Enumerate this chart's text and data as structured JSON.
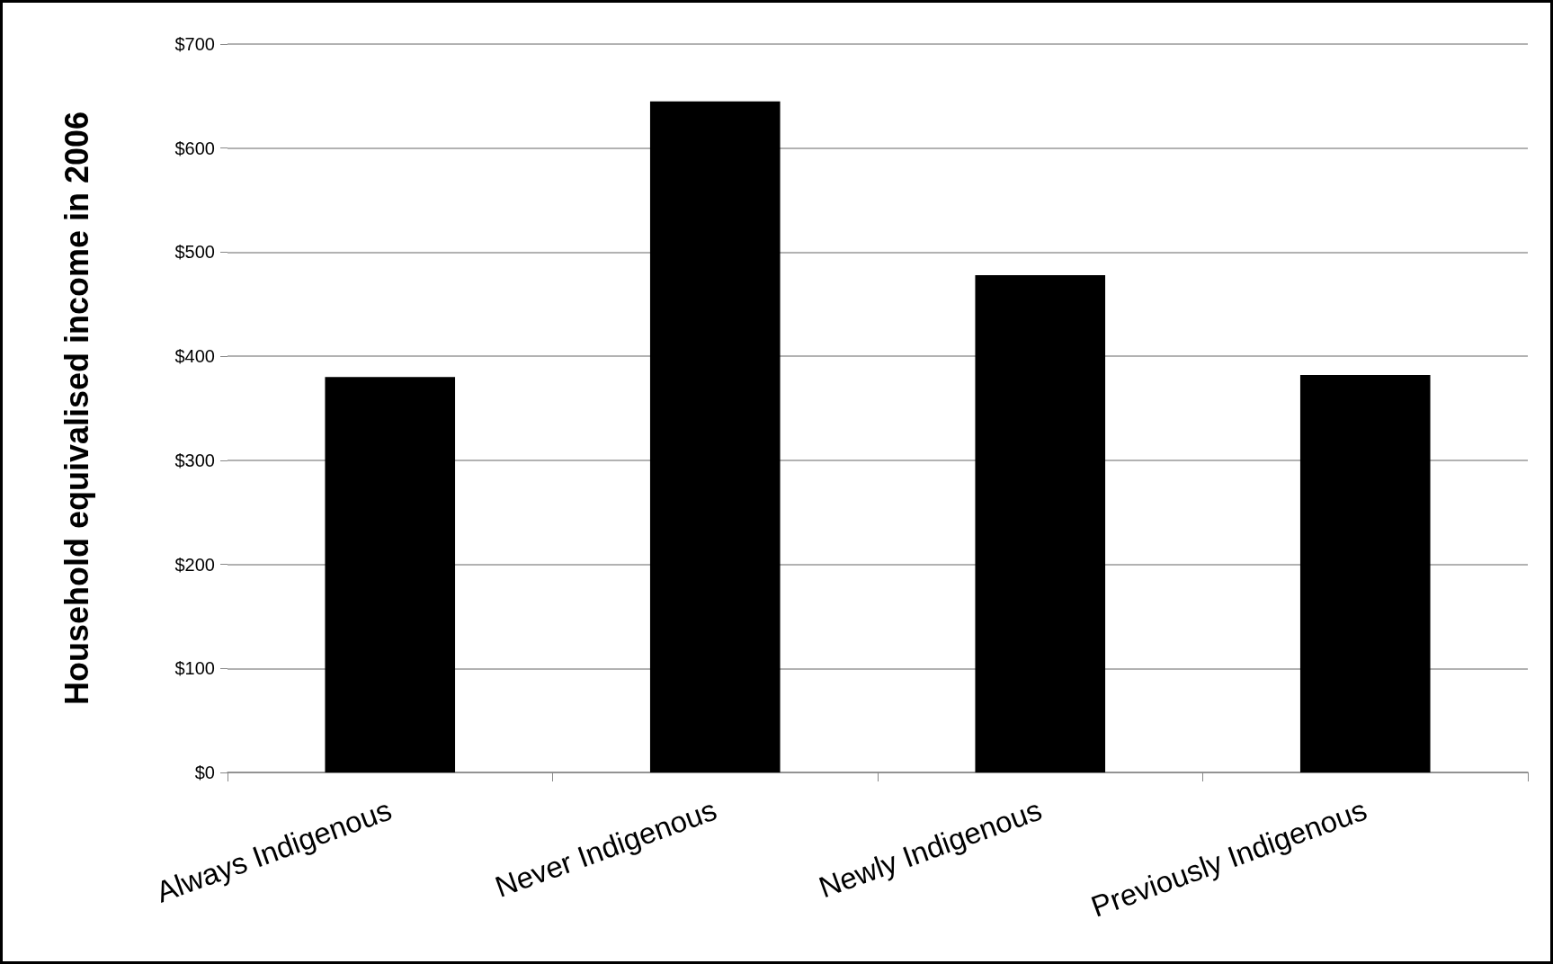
{
  "chart_data": {
    "type": "bar",
    "ylabel": "Household equivalised income in 2006",
    "categories": [
      "Always Indigenous",
      "Never Indigenous",
      "Newly Indigenous",
      "Previously Indigenous"
    ],
    "values": [
      380,
      645,
      478,
      382
    ],
    "color": "#000000",
    "ylim": [
      0,
      700
    ],
    "yticks": [
      {
        "value": 0,
        "label": "$0"
      },
      {
        "value": 100,
        "label": "$100"
      },
      {
        "value": 200,
        "label": "$200"
      },
      {
        "value": 300,
        "label": "$300"
      },
      {
        "value": 400,
        "label": "$400"
      },
      {
        "value": 500,
        "label": "$500"
      },
      {
        "value": 600,
        "label": "$600"
      },
      {
        "value": 700,
        "label": "$700"
      }
    ],
    "grid": "y"
  }
}
